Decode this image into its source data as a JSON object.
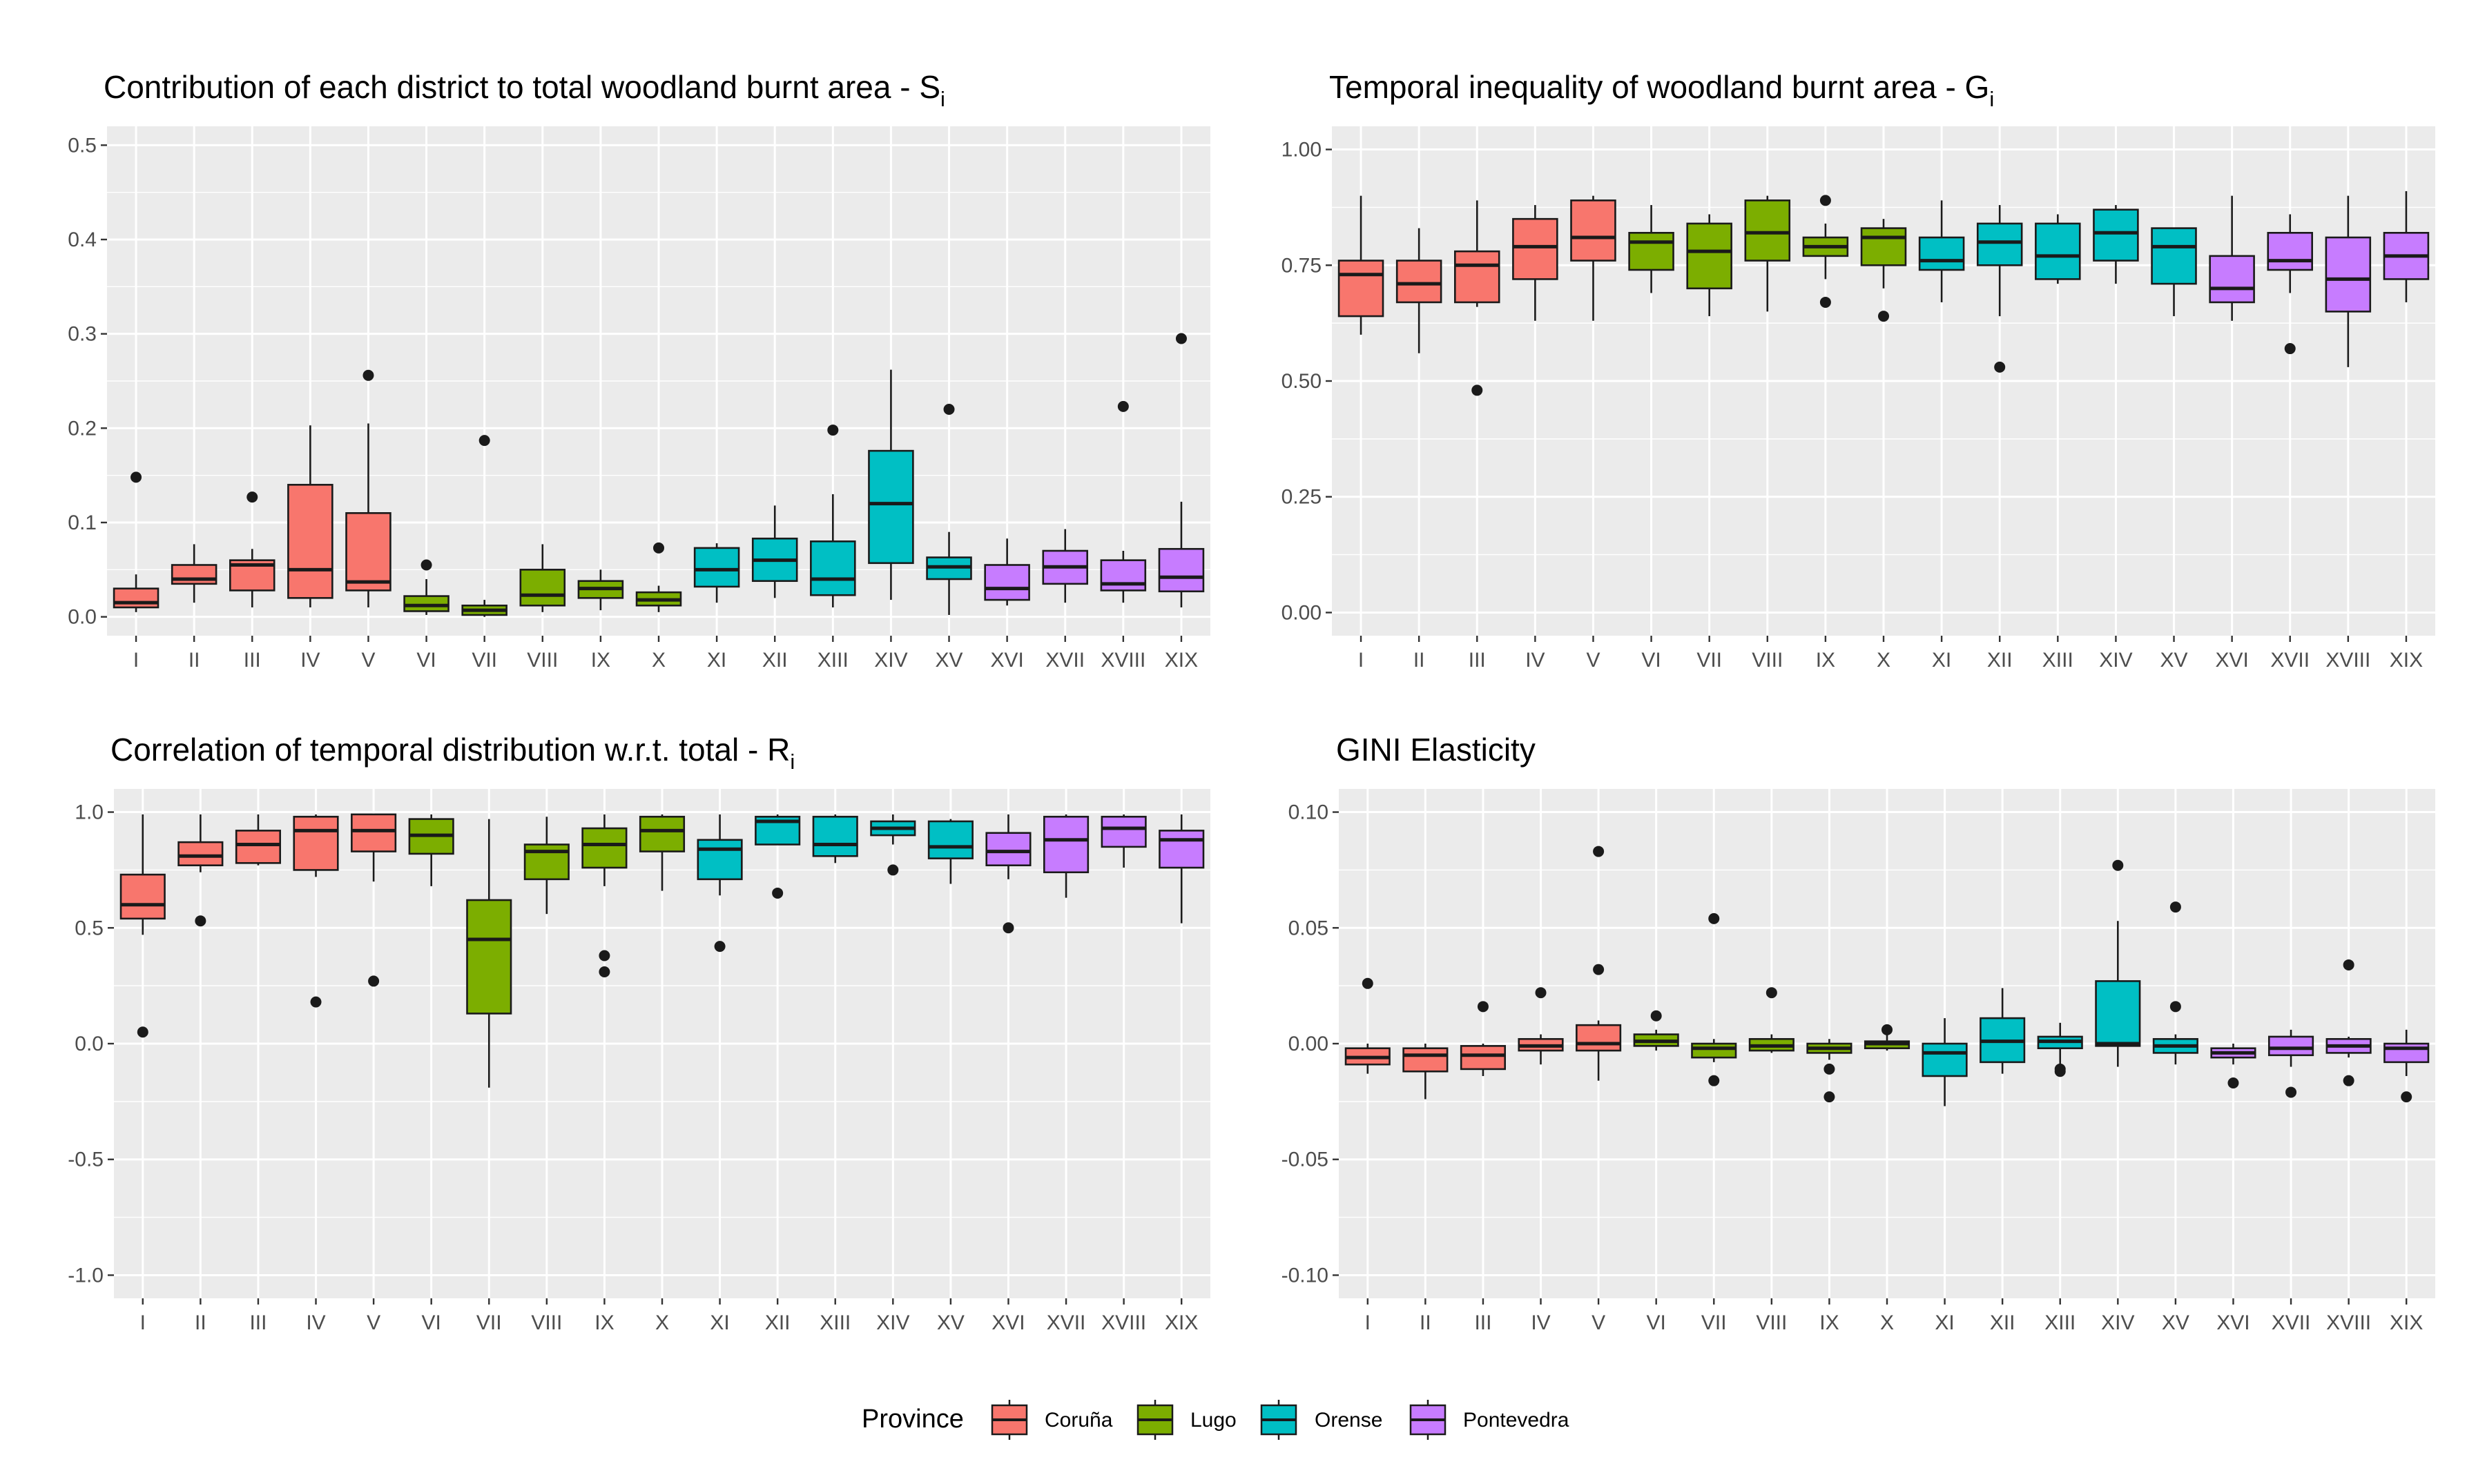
{
  "legend": {
    "title": "Province",
    "entries": [
      {
        "name": "Coruña",
        "color": "#F8766D"
      },
      {
        "name": "Lugo",
        "color": "#7CAE00"
      },
      {
        "name": "Orense",
        "color": "#00BFC4"
      },
      {
        "name": "Pontevedra",
        "color": "#C77CFF"
      }
    ]
  },
  "chart_data": [
    {
      "type": "boxplot",
      "title": "Contribution of each district to total woodland burnt area - S",
      "title_subscript": "i",
      "xlabel": "",
      "ylabel": "",
      "ylim": [
        -0.02,
        0.52
      ],
      "yticks": [
        0.0,
        0.1,
        0.2,
        0.3,
        0.4,
        0.5
      ],
      "ytick_labels": [
        "0.0",
        "0.1",
        "0.2",
        "0.3",
        "0.4",
        "0.5"
      ],
      "categories": [
        "I",
        "II",
        "III",
        "IV",
        "V",
        "VI",
        "VII",
        "VIII",
        "IX",
        "X",
        "XI",
        "XII",
        "XIII",
        "XIV",
        "XV",
        "XVI",
        "XVII",
        "XVIII",
        "XIX"
      ],
      "groups": [
        "Coruña",
        "Coruña",
        "Coruña",
        "Coruña",
        "Coruña",
        "Lugo",
        "Lugo",
        "Lugo",
        "Lugo",
        "Lugo",
        "Orense",
        "Orense",
        "Orense",
        "Orense",
        "Orense",
        "Pontevedra",
        "Pontevedra",
        "Pontevedra",
        "Pontevedra"
      ],
      "boxes": [
        {
          "lo": 0.005,
          "q1": 0.01,
          "med": 0.015,
          "q3": 0.03,
          "hi": 0.045,
          "out": [
            0.148
          ]
        },
        {
          "lo": 0.015,
          "q1": 0.035,
          "med": 0.04,
          "q3": 0.055,
          "hi": 0.077,
          "out": []
        },
        {
          "lo": 0.01,
          "q1": 0.028,
          "med": 0.055,
          "q3": 0.06,
          "hi": 0.072,
          "out": [
            0.127
          ]
        },
        {
          "lo": 0.01,
          "q1": 0.02,
          "med": 0.05,
          "q3": 0.14,
          "hi": 0.203,
          "out": []
        },
        {
          "lo": 0.01,
          "q1": 0.028,
          "med": 0.037,
          "q3": 0.11,
          "hi": 0.205,
          "out": [
            0.256
          ]
        },
        {
          "lo": 0.002,
          "q1": 0.006,
          "med": 0.012,
          "q3": 0.022,
          "hi": 0.04,
          "out": [
            0.055
          ]
        },
        {
          "lo": 0.0,
          "q1": 0.002,
          "med": 0.007,
          "q3": 0.012,
          "hi": 0.018,
          "out": [
            0.187
          ]
        },
        {
          "lo": 0.005,
          "q1": 0.012,
          "med": 0.023,
          "q3": 0.05,
          "hi": 0.077,
          "out": []
        },
        {
          "lo": 0.007,
          "q1": 0.02,
          "med": 0.03,
          "q3": 0.038,
          "hi": 0.05,
          "out": []
        },
        {
          "lo": 0.005,
          "q1": 0.012,
          "med": 0.018,
          "q3": 0.026,
          "hi": 0.033,
          "out": [
            0.073
          ]
        },
        {
          "lo": 0.015,
          "q1": 0.032,
          "med": 0.05,
          "q3": 0.073,
          "hi": 0.078,
          "out": []
        },
        {
          "lo": 0.02,
          "q1": 0.038,
          "med": 0.06,
          "q3": 0.083,
          "hi": 0.118,
          "out": []
        },
        {
          "lo": 0.01,
          "q1": 0.023,
          "med": 0.04,
          "q3": 0.08,
          "hi": 0.13,
          "out": [
            0.198
          ]
        },
        {
          "lo": 0.018,
          "q1": 0.057,
          "med": 0.12,
          "q3": 0.176,
          "hi": 0.262,
          "out": []
        },
        {
          "lo": 0.002,
          "q1": 0.04,
          "med": 0.053,
          "q3": 0.063,
          "hi": 0.09,
          "out": [
            0.22
          ]
        },
        {
          "lo": 0.012,
          "q1": 0.018,
          "med": 0.03,
          "q3": 0.055,
          "hi": 0.083,
          "out": []
        },
        {
          "lo": 0.015,
          "q1": 0.035,
          "med": 0.053,
          "q3": 0.07,
          "hi": 0.093,
          "out": []
        },
        {
          "lo": 0.015,
          "q1": 0.028,
          "med": 0.035,
          "q3": 0.06,
          "hi": 0.07,
          "out": [
            0.223
          ]
        },
        {
          "lo": 0.01,
          "q1": 0.027,
          "med": 0.042,
          "q3": 0.072,
          "hi": 0.122,
          "out": [
            0.295
          ]
        }
      ]
    },
    {
      "type": "boxplot",
      "title": "Temporal inequality of woodland burnt area - G",
      "title_subscript": "i",
      "xlabel": "",
      "ylabel": "",
      "ylim": [
        -0.05,
        1.05
      ],
      "yticks": [
        0.0,
        0.25,
        0.5,
        0.75,
        1.0
      ],
      "ytick_labels": [
        "0.00",
        "0.25",
        "0.50",
        "0.75",
        "1.00"
      ],
      "categories": [
        "I",
        "II",
        "III",
        "IV",
        "V",
        "VI",
        "VII",
        "VIII",
        "IX",
        "X",
        "XI",
        "XII",
        "XIII",
        "XIV",
        "XV",
        "XVI",
        "XVII",
        "XVIII",
        "XIX"
      ],
      "groups": [
        "Coruña",
        "Coruña",
        "Coruña",
        "Coruña",
        "Coruña",
        "Lugo",
        "Lugo",
        "Lugo",
        "Lugo",
        "Lugo",
        "Orense",
        "Orense",
        "Orense",
        "Orense",
        "Orense",
        "Pontevedra",
        "Pontevedra",
        "Pontevedra",
        "Pontevedra"
      ],
      "boxes": [
        {
          "lo": 0.6,
          "q1": 0.64,
          "med": 0.73,
          "q3": 0.76,
          "hi": 0.9,
          "out": []
        },
        {
          "lo": 0.56,
          "q1": 0.67,
          "med": 0.71,
          "q3": 0.76,
          "hi": 0.83,
          "out": []
        },
        {
          "lo": 0.66,
          "q1": 0.67,
          "med": 0.75,
          "q3": 0.78,
          "hi": 0.89,
          "out": [
            0.48
          ]
        },
        {
          "lo": 0.63,
          "q1": 0.72,
          "med": 0.79,
          "q3": 0.85,
          "hi": 0.88,
          "out": []
        },
        {
          "lo": 0.63,
          "q1": 0.76,
          "med": 0.81,
          "q3": 0.89,
          "hi": 0.9,
          "out": []
        },
        {
          "lo": 0.69,
          "q1": 0.74,
          "med": 0.8,
          "q3": 0.82,
          "hi": 0.88,
          "out": []
        },
        {
          "lo": 0.64,
          "q1": 0.7,
          "med": 0.78,
          "q3": 0.84,
          "hi": 0.86,
          "out": []
        },
        {
          "lo": 0.65,
          "q1": 0.76,
          "med": 0.82,
          "q3": 0.89,
          "hi": 0.9,
          "out": []
        },
        {
          "lo": 0.72,
          "q1": 0.77,
          "med": 0.79,
          "q3": 0.81,
          "hi": 0.84,
          "out": [
            0.89,
            0.67
          ]
        },
        {
          "lo": 0.7,
          "q1": 0.75,
          "med": 0.81,
          "q3": 0.83,
          "hi": 0.85,
          "out": [
            0.64
          ]
        },
        {
          "lo": 0.67,
          "q1": 0.74,
          "med": 0.76,
          "q3": 0.81,
          "hi": 0.89,
          "out": []
        },
        {
          "lo": 0.64,
          "q1": 0.75,
          "med": 0.8,
          "q3": 0.84,
          "hi": 0.88,
          "out": [
            0.53
          ]
        },
        {
          "lo": 0.71,
          "q1": 0.72,
          "med": 0.77,
          "q3": 0.84,
          "hi": 0.86,
          "out": []
        },
        {
          "lo": 0.71,
          "q1": 0.76,
          "med": 0.82,
          "q3": 0.87,
          "hi": 0.88,
          "out": []
        },
        {
          "lo": 0.64,
          "q1": 0.71,
          "med": 0.79,
          "q3": 0.83,
          "hi": 0.83,
          "out": []
        },
        {
          "lo": 0.63,
          "q1": 0.67,
          "med": 0.7,
          "q3": 0.77,
          "hi": 0.9,
          "out": []
        },
        {
          "lo": 0.69,
          "q1": 0.74,
          "med": 0.76,
          "q3": 0.82,
          "hi": 0.86,
          "out": [
            0.57
          ]
        },
        {
          "lo": 0.53,
          "q1": 0.65,
          "med": 0.72,
          "q3": 0.81,
          "hi": 0.9,
          "out": []
        },
        {
          "lo": 0.67,
          "q1": 0.72,
          "med": 0.77,
          "q3": 0.82,
          "hi": 0.91,
          "out": []
        }
      ]
    },
    {
      "type": "boxplot",
      "title": "Correlation of temporal distribution w.r.t. total - R",
      "title_subscript": "i",
      "xlabel": "",
      "ylabel": "",
      "ylim": [
        -1.1,
        1.1
      ],
      "yticks": [
        -1.0,
        -0.5,
        0.0,
        0.5,
        1.0
      ],
      "ytick_labels": [
        "-1.0",
        "-0.5",
        "0.0",
        "0.5",
        "1.0"
      ],
      "categories": [
        "I",
        "II",
        "III",
        "IV",
        "V",
        "VI",
        "VII",
        "VIII",
        "IX",
        "X",
        "XI",
        "XII",
        "XIII",
        "XIV",
        "XV",
        "XVI",
        "XVII",
        "XVIII",
        "XIX"
      ],
      "groups": [
        "Coruña",
        "Coruña",
        "Coruña",
        "Coruña",
        "Coruña",
        "Lugo",
        "Lugo",
        "Lugo",
        "Lugo",
        "Lugo",
        "Orense",
        "Orense",
        "Orense",
        "Orense",
        "Orense",
        "Pontevedra",
        "Pontevedra",
        "Pontevedra",
        "Pontevedra"
      ],
      "boxes": [
        {
          "lo": 0.47,
          "q1": 0.54,
          "med": 0.6,
          "q3": 0.73,
          "hi": 0.99,
          "out": [
            0.05
          ]
        },
        {
          "lo": 0.74,
          "q1": 0.77,
          "med": 0.81,
          "q3": 0.87,
          "hi": 0.99,
          "out": [
            0.53
          ]
        },
        {
          "lo": 0.77,
          "q1": 0.78,
          "med": 0.86,
          "q3": 0.92,
          "hi": 0.99,
          "out": []
        },
        {
          "lo": 0.72,
          "q1": 0.75,
          "med": 0.92,
          "q3": 0.98,
          "hi": 0.99,
          "out": [
            0.18
          ]
        },
        {
          "lo": 0.7,
          "q1": 0.83,
          "med": 0.92,
          "q3": 0.99,
          "hi": 0.99,
          "out": [
            0.27
          ]
        },
        {
          "lo": 0.68,
          "q1": 0.82,
          "med": 0.9,
          "q3": 0.97,
          "hi": 0.99,
          "out": []
        },
        {
          "lo": -0.19,
          "q1": 0.13,
          "med": 0.45,
          "q3": 0.62,
          "hi": 0.97,
          "out": []
        },
        {
          "lo": 0.56,
          "q1": 0.71,
          "med": 0.83,
          "q3": 0.86,
          "hi": 0.98,
          "out": []
        },
        {
          "lo": 0.68,
          "q1": 0.76,
          "med": 0.86,
          "q3": 0.93,
          "hi": 0.99,
          "out": [
            0.38,
            0.31
          ]
        },
        {
          "lo": 0.66,
          "q1": 0.83,
          "med": 0.92,
          "q3": 0.98,
          "hi": 0.99,
          "out": []
        },
        {
          "lo": 0.64,
          "q1": 0.71,
          "med": 0.84,
          "q3": 0.88,
          "hi": 0.99,
          "out": [
            0.42
          ]
        },
        {
          "lo": 0.86,
          "q1": 0.86,
          "med": 0.96,
          "q3": 0.98,
          "hi": 0.99,
          "out": [
            0.65
          ]
        },
        {
          "lo": 0.78,
          "q1": 0.81,
          "med": 0.86,
          "q3": 0.98,
          "hi": 0.99,
          "out": []
        },
        {
          "lo": 0.86,
          "q1": 0.9,
          "med": 0.93,
          "q3": 0.96,
          "hi": 0.99,
          "out": [
            0.75
          ]
        },
        {
          "lo": 0.69,
          "q1": 0.8,
          "med": 0.85,
          "q3": 0.96,
          "hi": 0.97,
          "out": []
        },
        {
          "lo": 0.71,
          "q1": 0.77,
          "med": 0.83,
          "q3": 0.91,
          "hi": 0.99,
          "out": [
            0.5
          ]
        },
        {
          "lo": 0.63,
          "q1": 0.74,
          "med": 0.88,
          "q3": 0.98,
          "hi": 0.99,
          "out": []
        },
        {
          "lo": 0.76,
          "q1": 0.85,
          "med": 0.93,
          "q3": 0.98,
          "hi": 0.99,
          "out": []
        },
        {
          "lo": 0.52,
          "q1": 0.76,
          "med": 0.88,
          "q3": 0.92,
          "hi": 0.99,
          "out": []
        }
      ]
    },
    {
      "type": "boxplot",
      "title": "GINI Elasticity",
      "title_subscript": "",
      "xlabel": "",
      "ylabel": "",
      "ylim": [
        -0.11,
        0.11
      ],
      "yticks": [
        -0.1,
        -0.05,
        0.0,
        0.05,
        0.1
      ],
      "ytick_labels": [
        "-0.10",
        "-0.05",
        "0.00",
        "0.05",
        "0.10"
      ],
      "categories": [
        "I",
        "II",
        "III",
        "IV",
        "V",
        "VI",
        "VII",
        "VIII",
        "IX",
        "X",
        "XI",
        "XII",
        "XIII",
        "XIV",
        "XV",
        "XVI",
        "XVII",
        "XVIII",
        "XIX"
      ],
      "groups": [
        "Coruña",
        "Coruña",
        "Coruña",
        "Coruña",
        "Coruña",
        "Lugo",
        "Lugo",
        "Lugo",
        "Lugo",
        "Lugo",
        "Orense",
        "Orense",
        "Orense",
        "Orense",
        "Orense",
        "Pontevedra",
        "Pontevedra",
        "Pontevedra",
        "Pontevedra"
      ],
      "boxes": [
        {
          "lo": -0.013,
          "q1": -0.009,
          "med": -0.006,
          "q3": -0.002,
          "hi": 0.0,
          "out": [
            0.026
          ]
        },
        {
          "lo": -0.024,
          "q1": -0.012,
          "med": -0.005,
          "q3": -0.002,
          "hi": 0.0,
          "out": []
        },
        {
          "lo": -0.014,
          "q1": -0.011,
          "med": -0.005,
          "q3": -0.001,
          "hi": 0.0,
          "out": [
            0.016
          ]
        },
        {
          "lo": -0.009,
          "q1": -0.003,
          "med": -0.001,
          "q3": 0.002,
          "hi": 0.004,
          "out": [
            0.022
          ]
        },
        {
          "lo": -0.016,
          "q1": -0.003,
          "med": 0.0,
          "q3": 0.008,
          "hi": 0.01,
          "out": [
            0.083,
            0.032
          ]
        },
        {
          "lo": -0.003,
          "q1": -0.001,
          "med": 0.001,
          "q3": 0.004,
          "hi": 0.006,
          "out": [
            0.012
          ]
        },
        {
          "lo": -0.008,
          "q1": -0.006,
          "med": -0.002,
          "q3": 0.0,
          "hi": 0.002,
          "out": [
            0.054,
            -0.016
          ]
        },
        {
          "lo": -0.004,
          "q1": -0.003,
          "med": -0.001,
          "q3": 0.002,
          "hi": 0.004,
          "out": [
            0.022
          ]
        },
        {
          "lo": -0.007,
          "q1": -0.004,
          "med": -0.002,
          "q3": 0.0,
          "hi": 0.002,
          "out": [
            -0.011,
            -0.023
          ]
        },
        {
          "lo": -0.003,
          "q1": -0.002,
          "med": 0.0,
          "q3": 0.001,
          "hi": 0.004,
          "out": [
            0.006
          ]
        },
        {
          "lo": -0.027,
          "q1": -0.014,
          "med": -0.004,
          "q3": 0.0,
          "hi": 0.011,
          "out": []
        },
        {
          "lo": -0.013,
          "q1": -0.008,
          "med": 0.001,
          "q3": 0.011,
          "hi": 0.024,
          "out": []
        },
        {
          "lo": -0.01,
          "q1": -0.002,
          "med": 0.001,
          "q3": 0.003,
          "hi": 0.009,
          "out": [
            -0.011,
            -0.012
          ]
        },
        {
          "lo": -0.01,
          "q1": -0.001,
          "med": 0.0,
          "q3": 0.027,
          "hi": 0.053,
          "out": [
            0.077
          ]
        },
        {
          "lo": -0.009,
          "q1": -0.004,
          "med": -0.001,
          "q3": 0.002,
          "hi": 0.004,
          "out": [
            0.059,
            0.016
          ]
        },
        {
          "lo": -0.009,
          "q1": -0.006,
          "med": -0.004,
          "q3": -0.002,
          "hi": 0.0,
          "out": [
            -0.017
          ]
        },
        {
          "lo": -0.01,
          "q1": -0.005,
          "med": -0.002,
          "q3": 0.003,
          "hi": 0.006,
          "out": [
            -0.021
          ]
        },
        {
          "lo": -0.006,
          "q1": -0.004,
          "med": -0.001,
          "q3": 0.002,
          "hi": 0.003,
          "out": [
            0.034,
            -0.016
          ]
        },
        {
          "lo": -0.014,
          "q1": -0.008,
          "med": -0.002,
          "q3": 0.0,
          "hi": 0.006,
          "out": [
            -0.023
          ]
        }
      ]
    }
  ]
}
